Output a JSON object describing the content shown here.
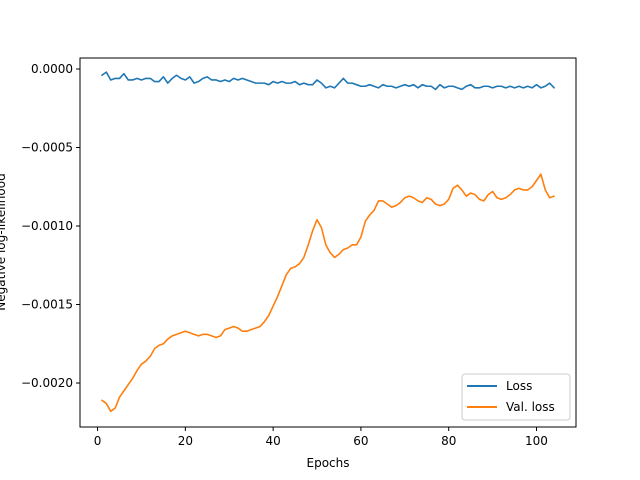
{
  "chart_data": {
    "type": "line",
    "xlabel": "Epochs",
    "ylabel": "Negative log-likelihood",
    "xlim": [
      -4,
      109
    ],
    "ylim": [
      -0.00228,
      7e-05
    ],
    "xticks": [
      0,
      20,
      40,
      60,
      80,
      100
    ],
    "xtick_labels": [
      "0",
      "20",
      "40",
      "60",
      "80",
      "100"
    ],
    "yticks": [
      0.0,
      -0.0005,
      -0.001,
      -0.0015,
      -0.002
    ],
    "ytick_labels": [
      "0.0000",
      "−0.0005",
      "−0.0010",
      "−0.0015",
      "−0.0020"
    ],
    "legend_position": "lower-right",
    "grid": false,
    "series": [
      {
        "name": "Loss",
        "color": "#1f77b4",
        "x_start": 1,
        "x_step": 1,
        "values": [
          -4e-05,
          -2e-05,
          -7e-05,
          -6e-05,
          -6e-05,
          -3e-05,
          -7e-05,
          -7e-05,
          -6e-05,
          -7e-05,
          -6e-05,
          -6e-05,
          -8e-05,
          -8e-05,
          -5e-05,
          -9e-05,
          -6e-05,
          -4e-05,
          -6e-05,
          -7e-05,
          -5e-05,
          -9e-05,
          -8e-05,
          -6e-05,
          -5e-05,
          -7e-05,
          -7e-05,
          -8e-05,
          -7e-05,
          -8e-05,
          -6e-05,
          -7e-05,
          -6e-05,
          -7e-05,
          -8e-05,
          -9e-05,
          -9e-05,
          -9e-05,
          -0.0001,
          -8e-05,
          -9e-05,
          -8e-05,
          -9e-05,
          -9e-05,
          -8e-05,
          -0.0001,
          -9e-05,
          -0.0001,
          -0.0001,
          -7e-05,
          -9e-05,
          -0.00012,
          -0.00011,
          -0.00012,
          -9e-05,
          -6e-05,
          -9e-05,
          -9e-05,
          -0.0001,
          -0.00011,
          -0.00011,
          -0.0001,
          -0.00011,
          -0.00012,
          -0.0001,
          -0.00011,
          -0.00011,
          -0.00012,
          -0.00011,
          -0.0001,
          -0.00011,
          -0.0001,
          -0.00012,
          -0.0001,
          -0.00011,
          -0.00011,
          -0.00013,
          -0.0001,
          -0.00012,
          -0.00011,
          -0.00011,
          -0.00012,
          -0.00013,
          -0.00011,
          -0.0001,
          -0.00012,
          -0.00012,
          -0.00011,
          -0.00011,
          -0.00012,
          -0.00011,
          -0.00011,
          -0.00012,
          -0.00011,
          -0.00012,
          -0.00011,
          -0.00012,
          -0.00011,
          -0.00012,
          -0.0001,
          -0.00012,
          -0.00011,
          -9e-05,
          -0.00012
        ]
      },
      {
        "name": "Val. loss",
        "color": "#ff7f0e",
        "x_start": 1,
        "x_step": 1,
        "values": [
          -0.00211,
          -0.00213,
          -0.00218,
          -0.00216,
          -0.00209,
          -0.00205,
          -0.00201,
          -0.00197,
          -0.00192,
          -0.00188,
          -0.00186,
          -0.00183,
          -0.00178,
          -0.00176,
          -0.00175,
          -0.00172,
          -0.0017,
          -0.00169,
          -0.00168,
          -0.00167,
          -0.00168,
          -0.00169,
          -0.0017,
          -0.00169,
          -0.00169,
          -0.0017,
          -0.00171,
          -0.0017,
          -0.00166,
          -0.00165,
          -0.00164,
          -0.00165,
          -0.00167,
          -0.00167,
          -0.00166,
          -0.00165,
          -0.00164,
          -0.00161,
          -0.00157,
          -0.00151,
          -0.00145,
          -0.00138,
          -0.00131,
          -0.00127,
          -0.00126,
          -0.00124,
          -0.0012,
          -0.00112,
          -0.00103,
          -0.00096,
          -0.00101,
          -0.00112,
          -0.00117,
          -0.0012,
          -0.00118,
          -0.00115,
          -0.00114,
          -0.00112,
          -0.00112,
          -0.00107,
          -0.00097,
          -0.00093,
          -0.0009,
          -0.00084,
          -0.00084,
          -0.00086,
          -0.00088,
          -0.00087,
          -0.00085,
          -0.00082,
          -0.00081,
          -0.00082,
          -0.00084,
          -0.00085,
          -0.00082,
          -0.00083,
          -0.00086,
          -0.00087,
          -0.00086,
          -0.00083,
          -0.00076,
          -0.00074,
          -0.00077,
          -0.00081,
          -0.00079,
          -0.0008,
          -0.00083,
          -0.00084,
          -0.0008,
          -0.00078,
          -0.00082,
          -0.00083,
          -0.00082,
          -0.0008,
          -0.00077,
          -0.00076,
          -0.00077,
          -0.00077,
          -0.00075,
          -0.00071,
          -0.00067,
          -0.00077,
          -0.00082,
          -0.00081
        ]
      }
    ]
  }
}
